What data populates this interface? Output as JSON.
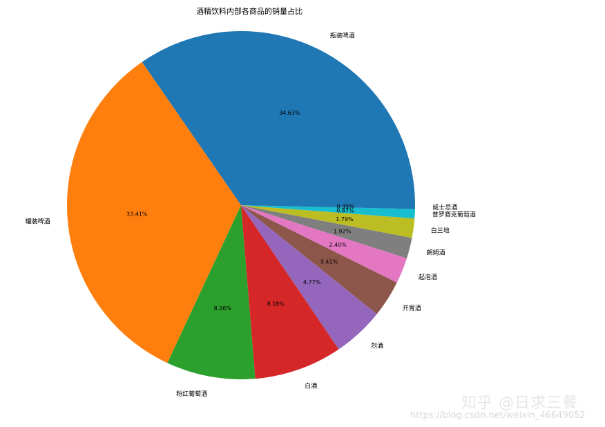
{
  "chart_data": {
    "type": "pie",
    "title": "酒精饮料内部各商品的销量占比",
    "slices": [
      {
        "label": "瓶装啤酒",
        "value": 34.63,
        "pct_label": "34.63%",
        "color": "#1f77b4"
      },
      {
        "label": "罐装啤酒",
        "value": 33.41,
        "pct_label": "33.41%",
        "color": "#ff7f0e"
      },
      {
        "label": "粉红葡萄酒",
        "value": 8.26,
        "pct_label": "8.26%",
        "color": "#2ca02c"
      },
      {
        "label": "白酒",
        "value": 8.18,
        "pct_label": "8.18%",
        "color": "#d62728"
      },
      {
        "label": "烈酒",
        "value": 4.77,
        "pct_label": "4.77%",
        "color": "#9467bd"
      },
      {
        "label": "开胃酒",
        "value": 3.41,
        "pct_label": "3.41%",
        "color": "#8c564b"
      },
      {
        "label": "起泡酒",
        "value": 2.4,
        "pct_label": "2.40%",
        "color": "#e377c2"
      },
      {
        "label": "朗姆酒",
        "value": 1.92,
        "pct_label": "1.92%",
        "color": "#7f7f7f"
      },
      {
        "label": "白兰地",
        "value": 1.79,
        "pct_label": "1.79%",
        "color": "#bcbd22"
      },
      {
        "label": "普罗赛克葡萄酒",
        "value": 0.87,
        "pct_label": "0.87%",
        "color": "#17becf"
      },
      {
        "label": "威士忌酒",
        "value": 0.35,
        "pct_label": "0.35%",
        "color": "#1f77b4"
      }
    ]
  },
  "watermark": {
    "brand": "知乎 @日求三餐",
    "url": "https://blog.csdn.net/weixin_46649052"
  }
}
